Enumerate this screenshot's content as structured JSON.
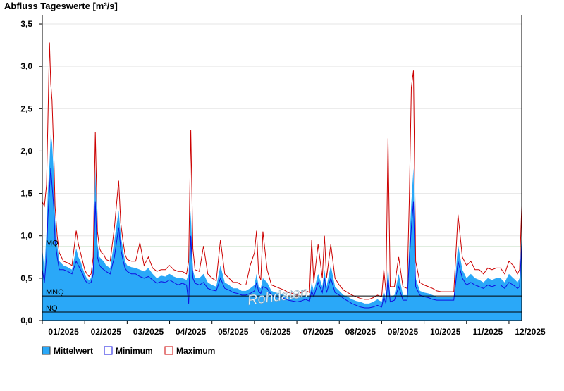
{
  "chart_data": {
    "type": "area",
    "title": "Abfluss Tageswerte [m³/s]",
    "xlabel": "",
    "ylabel": "",
    "ylim": [
      0,
      3.6
    ],
    "yticks": [
      "0,0",
      "0,5",
      "1,0",
      "1,5",
      "2,0",
      "2,5",
      "3,0",
      "3,5"
    ],
    "ytick_values": [
      0,
      0.5,
      1.0,
      1.5,
      2.0,
      2.5,
      3.0,
      3.5
    ],
    "xlim": [
      0,
      11.3
    ],
    "xticks": [
      "01/2025",
      "02/2025",
      "03/2025",
      "04/2025",
      "05/2025",
      "06/2025",
      "07/2025",
      "08/2025",
      "09/2025",
      "10/2025",
      "11/2025",
      "12/2025"
    ],
    "grid": true,
    "legend_position": "bottom-left",
    "watermark": "Rohdaten",
    "reference_lines": [
      {
        "label": "MQ",
        "value": 0.87,
        "color": "#007000"
      },
      {
        "label": "MNQ",
        "value": 0.29,
        "color": "#000000"
      },
      {
        "label": "NQ",
        "value": 0.1,
        "color": "#000000"
      }
    ],
    "colors": {
      "mean_fill": "#2aa8f8",
      "minimum": "#1010e0",
      "maximum": "#cc0000"
    },
    "series": [
      {
        "name": "Mittelwert",
        "x": [
          0.0,
          0.05,
          0.1,
          0.13,
          0.17,
          0.2,
          0.23,
          0.27,
          0.3,
          0.35,
          0.4,
          0.5,
          0.6,
          0.7,
          0.8,
          0.85,
          0.9,
          0.95,
          1.0,
          1.05,
          1.1,
          1.15,
          1.2,
          1.25,
          1.3,
          1.35,
          1.4,
          1.45,
          1.5,
          1.6,
          1.7,
          1.8,
          1.85,
          1.9,
          1.95,
          2.0,
          2.1,
          2.2,
          2.3,
          2.4,
          2.5,
          2.6,
          2.7,
          2.8,
          2.9,
          3.0,
          3.1,
          3.2,
          3.3,
          3.4,
          3.45,
          3.5,
          3.55,
          3.6,
          3.7,
          3.8,
          3.9,
          4.0,
          4.1,
          4.2,
          4.3,
          4.4,
          4.5,
          4.6,
          4.7,
          4.8,
          4.9,
          5.0,
          5.05,
          5.1,
          5.15,
          5.2,
          5.3,
          5.4,
          5.5,
          5.6,
          5.7,
          5.8,
          5.9,
          6.0,
          6.1,
          6.2,
          6.3,
          6.35,
          6.4,
          6.5,
          6.6,
          6.65,
          6.7,
          6.8,
          6.9,
          7.0,
          7.1,
          7.2,
          7.3,
          7.4,
          7.5,
          7.6,
          7.7,
          7.8,
          7.9,
          8.0,
          8.05,
          8.1,
          8.15,
          8.2,
          8.3,
          8.4,
          8.5,
          8.6,
          8.65,
          8.7,
          8.75,
          8.8,
          8.9,
          9.0,
          9.1,
          9.2,
          9.3,
          9.4,
          9.5,
          9.6,
          9.7,
          9.8,
          9.9,
          10.0,
          10.1,
          10.2,
          10.3,
          10.4,
          10.5,
          10.6,
          10.7,
          10.8,
          10.9,
          11.0,
          11.1,
          11.15,
          11.2,
          11.25,
          11.3
        ],
        "values": [
          0.85,
          0.6,
          1.05,
          1.5,
          1.85,
          2.2,
          2.1,
          1.75,
          1.2,
          0.9,
          0.7,
          0.65,
          0.63,
          0.6,
          0.85,
          0.75,
          0.7,
          0.62,
          0.55,
          0.5,
          0.48,
          0.5,
          0.65,
          1.8,
          0.9,
          0.75,
          0.72,
          0.7,
          0.65,
          0.62,
          0.95,
          1.3,
          1.0,
          0.85,
          0.7,
          0.65,
          0.63,
          0.62,
          0.6,
          0.58,
          0.62,
          0.55,
          0.5,
          0.53,
          0.52,
          0.55,
          0.52,
          0.5,
          0.5,
          0.48,
          0.55,
          1.3,
          0.6,
          0.5,
          0.5,
          0.55,
          0.45,
          0.42,
          0.4,
          0.65,
          0.45,
          0.42,
          0.38,
          0.38,
          0.35,
          0.35,
          0.38,
          0.42,
          0.55,
          0.4,
          0.38,
          0.5,
          0.45,
          0.35,
          0.33,
          0.32,
          0.3,
          0.28,
          0.27,
          0.26,
          0.28,
          0.3,
          0.28,
          0.45,
          0.35,
          0.55,
          0.4,
          0.6,
          0.4,
          0.65,
          0.4,
          0.35,
          0.3,
          0.28,
          0.25,
          0.23,
          0.22,
          0.2,
          0.2,
          0.22,
          0.25,
          0.22,
          0.35,
          0.25,
          0.65,
          0.28,
          0.3,
          0.55,
          0.3,
          0.3,
          0.9,
          1.4,
          1.8,
          0.5,
          0.35,
          0.33,
          0.32,
          0.3,
          0.28,
          0.28,
          0.28,
          0.28,
          0.28,
          0.9,
          0.6,
          0.5,
          0.55,
          0.5,
          0.48,
          0.45,
          0.5,
          0.48,
          0.5,
          0.5,
          0.45,
          0.55,
          0.5,
          0.48,
          0.45,
          0.5,
          1.05
        ]
      },
      {
        "name": "Minimum",
        "x": [
          0.0,
          0.05,
          0.1,
          0.13,
          0.17,
          0.2,
          0.23,
          0.27,
          0.3,
          0.35,
          0.4,
          0.5,
          0.6,
          0.7,
          0.8,
          0.85,
          0.9,
          0.95,
          1.0,
          1.05,
          1.1,
          1.15,
          1.2,
          1.25,
          1.3,
          1.35,
          1.4,
          1.45,
          1.5,
          1.6,
          1.7,
          1.8,
          1.85,
          1.9,
          1.95,
          2.0,
          2.1,
          2.2,
          2.3,
          2.4,
          2.5,
          2.6,
          2.7,
          2.8,
          2.9,
          3.0,
          3.1,
          3.2,
          3.3,
          3.4,
          3.45,
          3.5,
          3.55,
          3.6,
          3.7,
          3.8,
          3.9,
          4.0,
          4.1,
          4.2,
          4.3,
          4.4,
          4.5,
          4.6,
          4.7,
          4.8,
          4.9,
          5.0,
          5.05,
          5.1,
          5.15,
          5.2,
          5.3,
          5.4,
          5.5,
          5.6,
          5.7,
          5.8,
          5.9,
          6.0,
          6.1,
          6.2,
          6.3,
          6.35,
          6.4,
          6.5,
          6.6,
          6.65,
          6.7,
          6.8,
          6.9,
          7.0,
          7.1,
          7.2,
          7.3,
          7.4,
          7.5,
          7.6,
          7.7,
          7.8,
          7.9,
          8.0,
          8.05,
          8.1,
          8.15,
          8.2,
          8.3,
          8.4,
          8.5,
          8.6,
          8.65,
          8.7,
          8.75,
          8.8,
          8.9,
          9.0,
          9.1,
          9.2,
          9.3,
          9.4,
          9.5,
          9.6,
          9.7,
          9.8,
          9.9,
          10.0,
          10.1,
          10.2,
          10.3,
          10.4,
          10.5,
          10.6,
          10.7,
          10.8,
          10.9,
          11.0,
          11.1,
          11.15,
          11.2,
          11.25,
          11.3
        ],
        "values": [
          0.6,
          0.45,
          0.75,
          1.2,
          1.55,
          1.8,
          1.6,
          1.35,
          0.95,
          0.75,
          0.6,
          0.6,
          0.58,
          0.55,
          0.7,
          0.65,
          0.6,
          0.55,
          0.48,
          0.45,
          0.44,
          0.45,
          0.55,
          1.4,
          0.75,
          0.65,
          0.62,
          0.6,
          0.58,
          0.55,
          0.75,
          1.1,
          0.85,
          0.72,
          0.62,
          0.58,
          0.55,
          0.55,
          0.52,
          0.5,
          0.52,
          0.48,
          0.44,
          0.46,
          0.45,
          0.48,
          0.45,
          0.42,
          0.44,
          0.42,
          0.2,
          1.0,
          0.5,
          0.44,
          0.42,
          0.45,
          0.38,
          0.36,
          0.35,
          0.5,
          0.38,
          0.36,
          0.33,
          0.32,
          0.3,
          0.3,
          0.32,
          0.35,
          0.45,
          0.34,
          0.32,
          0.4,
          0.38,
          0.3,
          0.28,
          0.27,
          0.26,
          0.24,
          0.23,
          0.22,
          0.23,
          0.25,
          0.23,
          0.35,
          0.28,
          0.45,
          0.33,
          0.5,
          0.33,
          0.5,
          0.33,
          0.3,
          0.26,
          0.23,
          0.2,
          0.18,
          0.16,
          0.15,
          0.15,
          0.16,
          0.18,
          0.16,
          0.28,
          0.2,
          0.5,
          0.22,
          0.24,
          0.4,
          0.24,
          0.24,
          0.7,
          1.1,
          1.4,
          0.4,
          0.3,
          0.28,
          0.27,
          0.25,
          0.24,
          0.24,
          0.24,
          0.24,
          0.24,
          0.7,
          0.5,
          0.42,
          0.45,
          0.42,
          0.4,
          0.38,
          0.42,
          0.4,
          0.42,
          0.42,
          0.38,
          0.45,
          0.42,
          0.4,
          0.38,
          0.4,
          0.9
        ]
      },
      {
        "name": "Maximum",
        "x": [
          0.0,
          0.05,
          0.1,
          0.13,
          0.17,
          0.2,
          0.23,
          0.27,
          0.3,
          0.35,
          0.4,
          0.5,
          0.6,
          0.7,
          0.8,
          0.85,
          0.9,
          0.95,
          1.0,
          1.05,
          1.1,
          1.15,
          1.2,
          1.25,
          1.3,
          1.35,
          1.4,
          1.45,
          1.5,
          1.6,
          1.7,
          1.8,
          1.85,
          1.9,
          1.95,
          2.0,
          2.1,
          2.2,
          2.3,
          2.4,
          2.5,
          2.6,
          2.7,
          2.8,
          2.9,
          3.0,
          3.1,
          3.2,
          3.3,
          3.4,
          3.45,
          3.5,
          3.55,
          3.6,
          3.7,
          3.8,
          3.9,
          4.0,
          4.1,
          4.2,
          4.3,
          4.4,
          4.5,
          4.6,
          4.7,
          4.8,
          4.9,
          5.0,
          5.05,
          5.1,
          5.15,
          5.2,
          5.3,
          5.4,
          5.5,
          5.6,
          5.7,
          5.8,
          5.9,
          6.0,
          6.1,
          6.2,
          6.3,
          6.35,
          6.4,
          6.5,
          6.6,
          6.65,
          6.7,
          6.8,
          6.9,
          7.0,
          7.1,
          7.2,
          7.3,
          7.4,
          7.5,
          7.6,
          7.7,
          7.8,
          7.9,
          8.0,
          8.05,
          8.1,
          8.15,
          8.2,
          8.3,
          8.4,
          8.5,
          8.6,
          8.65,
          8.7,
          8.75,
          8.8,
          8.9,
          9.0,
          9.1,
          9.2,
          9.3,
          9.4,
          9.5,
          9.6,
          9.7,
          9.8,
          9.9,
          10.0,
          10.1,
          10.2,
          10.3,
          10.4,
          10.5,
          10.6,
          10.7,
          10.8,
          10.9,
          11.0,
          11.1,
          11.15,
          11.2,
          11.25,
          11.3
        ],
        "values": [
          1.4,
          1.35,
          1.6,
          2.3,
          3.28,
          2.8,
          2.6,
          2.0,
          1.35,
          1.0,
          0.8,
          0.7,
          0.68,
          0.65,
          1.06,
          0.9,
          0.8,
          0.7,
          0.6,
          0.55,
          0.52,
          0.55,
          0.75,
          2.22,
          1.05,
          0.85,
          0.8,
          0.78,
          0.72,
          0.7,
          1.1,
          1.65,
          1.15,
          0.95,
          0.78,
          0.72,
          0.7,
          0.7,
          0.92,
          0.65,
          0.75,
          0.62,
          0.58,
          0.6,
          0.6,
          0.65,
          0.6,
          0.58,
          0.58,
          0.55,
          0.7,
          2.25,
          0.85,
          0.6,
          0.58,
          0.88,
          0.55,
          0.5,
          0.47,
          0.95,
          0.55,
          0.5,
          0.45,
          0.45,
          0.42,
          0.42,
          0.65,
          0.8,
          1.06,
          0.55,
          0.48,
          1.05,
          0.6,
          0.42,
          0.4,
          0.38,
          0.36,
          0.33,
          0.32,
          0.3,
          0.33,
          0.36,
          0.33,
          0.95,
          0.45,
          0.9,
          0.5,
          1.0,
          0.5,
          0.9,
          0.5,
          0.42,
          0.36,
          0.33,
          0.3,
          0.28,
          0.26,
          0.25,
          0.25,
          0.27,
          0.3,
          0.28,
          0.6,
          0.35,
          2.15,
          0.4,
          0.4,
          0.75,
          0.4,
          0.38,
          1.4,
          2.75,
          2.95,
          0.7,
          0.45,
          0.42,
          0.4,
          0.38,
          0.35,
          0.34,
          0.34,
          0.34,
          0.34,
          1.25,
          0.75,
          0.65,
          0.7,
          0.6,
          0.6,
          0.55,
          0.62,
          0.6,
          0.62,
          0.62,
          0.55,
          0.7,
          0.65,
          0.6,
          0.55,
          0.6,
          1.35
        ]
      }
    ]
  }
}
